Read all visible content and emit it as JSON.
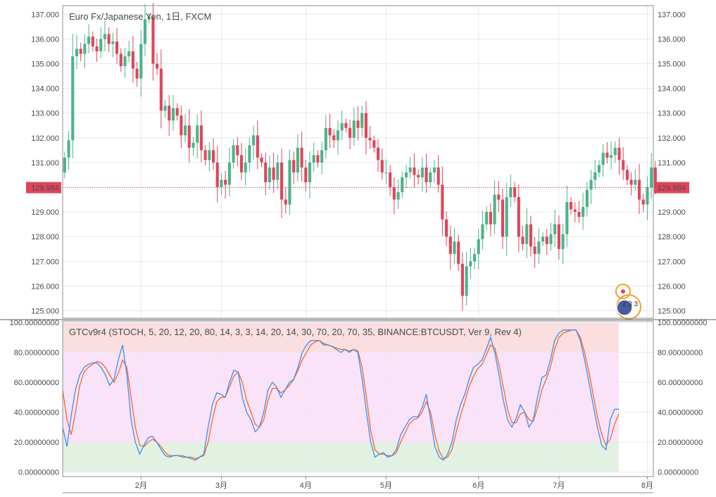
{
  "colors": {
    "up": "#4cb38b",
    "down": "#e0455b",
    "grid": "#e6eaee",
    "axis": "#8a8f94",
    "blue": "#3d8ee8",
    "orange": "#f06a2e",
    "band_high": "#fbdedf",
    "band_mid": "#fae2f8",
    "band_low": "#e3f1e2",
    "price_line": "#e0455b"
  },
  "chart_data": [
    {
      "type": "candlestick",
      "title": "Euro Fx/Japanese Yen, 1日, FXCM",
      "y_ticks": [
        "137.000",
        "136.000",
        "135.000",
        "134.000",
        "133.000",
        "132.000",
        "131.000",
        "130.000",
        "129.000",
        "128.000",
        "127.000",
        "126.000",
        "125.000"
      ],
      "ylim": [
        124.7,
        137.35
      ],
      "last_price": "129.984",
      "last_price_value": 129.984,
      "x_ticks": [
        {
          "label": "2月",
          "index": 19
        },
        {
          "label": "3月",
          "index": 39
        },
        {
          "label": "4月",
          "index": 60
        },
        {
          "label": "5月",
          "index": 80
        },
        {
          "label": "6月",
          "index": 103
        },
        {
          "label": "7月",
          "index": 123
        },
        {
          "label": "8月",
          "index": 145
        }
      ],
      "num_slots": 147,
      "badge_text": "2 3 3",
      "closes": [
        131.2,
        131.9,
        135.3,
        135.6,
        135.4,
        135.8,
        136.1,
        135.7,
        135.5,
        136.0,
        136.2,
        135.8,
        135.9,
        135.4,
        134.9,
        135.3,
        135.5,
        134.8,
        134.4,
        135.8,
        136.8,
        136.9,
        135.0,
        134.8,
        133.1,
        133.3,
        132.7,
        133.2,
        132.9,
        132.1,
        132.5,
        131.6,
        131.8,
        132.5,
        131.5,
        131.1,
        131.5,
        131.0,
        130.0,
        130.3,
        130.1,
        131.0,
        131.7,
        131.3,
        130.6,
        131.0,
        131.7,
        132.1,
        131.2,
        131.0,
        130.2,
        130.8,
        130.3,
        131.0,
        129.5,
        129.3,
        131.1,
        130.6,
        131.6,
        130.8,
        130.2,
        131.0,
        131.3,
        131.0,
        131.5,
        132.4,
        132.1,
        131.9,
        132.3,
        132.6,
        132.4,
        132.0,
        132.7,
        132.4,
        133.0,
        132.0,
        131.9,
        131.6,
        131.1,
        130.6,
        130.6,
        130.0,
        129.5,
        129.8,
        130.4,
        130.6,
        130.8,
        130.5,
        130.4,
        130.8,
        130.2,
        130.6,
        130.8,
        130.1,
        128.7,
        128.0,
        127.3,
        127.8,
        126.9,
        125.6,
        126.8,
        127.0,
        127.3,
        127.9,
        128.5,
        129.0,
        128.5,
        129.7,
        129.5,
        128.0,
        129.6,
        130.0,
        129.6,
        128.0,
        127.7,
        128.5,
        127.6,
        127.3,
        127.8,
        128.0,
        127.7,
        128.1,
        128.5,
        127.5,
        128.1,
        129.4,
        129.1,
        129.0,
        128.8,
        129.2,
        129.9,
        130.3,
        130.6,
        130.9,
        131.4,
        131.2,
        131.3,
        131.6,
        131.1,
        130.7,
        130.3,
        130.1,
        130.3,
        129.5,
        129.3,
        130.0,
        130.8,
        129.984
      ],
      "note": "OHLC per slot derived in script from consecutive closes"
    },
    {
      "type": "line",
      "title": "GTCv9r4 (STOCH, 5, 20, 12, 20, 80, 14, 3, 3, 14, 20, 14, 30, 70, 20, 70, 35, BINANCE:BTCUSDT, Ver 9, Rev 4)",
      "y_ticks": [
        "100.00000000",
        "80.00000000",
        "60.00000000",
        "40.00000000",
        "20.00000000",
        "0.00000000"
      ],
      "ylim": [
        -3,
        101
      ],
      "bands": [
        {
          "from": 80,
          "to": 100,
          "color": "band_high"
        },
        {
          "from": 20,
          "to": 80,
          "color": "band_mid"
        },
        {
          "from": 0,
          "to": 20,
          "color": "band_low"
        }
      ],
      "series": [
        {
          "name": "",
          "color": "blue",
          "values": [
            30,
            17,
            38,
            55,
            65,
            70,
            72,
            73,
            73,
            70,
            65,
            58,
            62,
            75,
            85,
            65,
            35,
            20,
            12,
            18,
            23,
            24,
            20,
            15,
            11,
            10,
            11,
            11,
            10,
            10,
            9,
            8,
            10,
            12,
            30,
            45,
            53,
            52,
            50,
            60,
            68,
            67,
            50,
            40,
            35,
            27,
            30,
            40,
            55,
            60,
            57,
            50,
            55,
            60,
            62,
            70,
            80,
            85,
            88,
            88,
            88,
            85,
            85,
            84,
            82,
            80,
            82,
            80,
            82,
            80,
            62,
            40,
            20,
            10,
            12,
            13,
            10,
            11,
            15,
            25,
            30,
            35,
            37,
            37,
            43,
            52,
            35,
            17,
            10,
            8,
            12,
            20,
            35,
            45,
            52,
            62,
            70,
            72,
            75,
            82,
            90,
            80,
            65,
            48,
            35,
            30,
            36,
            45,
            40,
            30,
            35,
            50,
            63,
            65,
            75,
            88,
            93,
            95,
            95,
            95,
            95,
            88,
            75,
            60,
            45,
            30,
            18,
            15,
            35,
            42,
            42
          ]
        },
        {
          "name": "",
          "color": "orange",
          "values": [
            55,
            35,
            25,
            40,
            58,
            67,
            70,
            72,
            74,
            73,
            70,
            65,
            60,
            66,
            75,
            70,
            50,
            30,
            18,
            17,
            20,
            22,
            20,
            17,
            13,
            11,
            11,
            11,
            11,
            10,
            10,
            9,
            10,
            11,
            20,
            35,
            47,
            50,
            50,
            57,
            64,
            67,
            60,
            48,
            40,
            32,
            30,
            35,
            48,
            56,
            56,
            53,
            55,
            58,
            62,
            68,
            75,
            80,
            85,
            87,
            88,
            86,
            85,
            84,
            83,
            82,
            82,
            81,
            82,
            81,
            70,
            50,
            28,
            15,
            12,
            12,
            11,
            11,
            13,
            20,
            26,
            32,
            35,
            36,
            40,
            47,
            40,
            25,
            14,
            9,
            10,
            15,
            27,
            38,
            47,
            57,
            64,
            69,
            72,
            78,
            85,
            83,
            72,
            57,
            42,
            33,
            33,
            39,
            40,
            35,
            34,
            43,
            55,
            62,
            70,
            82,
            90,
            93,
            94,
            95,
            95,
            90,
            80,
            67,
            52,
            37,
            25,
            18,
            22,
            32,
            39
          ]
        }
      ],
      "x_ticks": [
        "2月",
        "3月",
        "4月",
        "5月",
        "6月",
        "7月",
        "8月"
      ]
    }
  ]
}
